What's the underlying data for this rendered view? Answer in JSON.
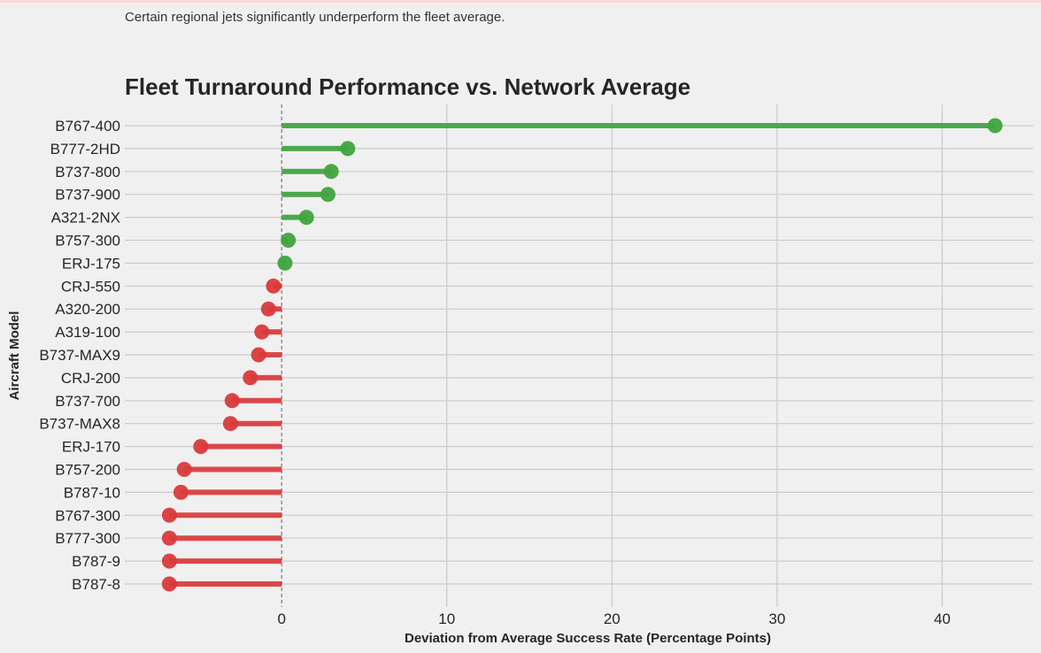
{
  "subtitle": "Certain regional jets significantly underperform the fleet average.",
  "colors": {
    "positive": "#3fa33f",
    "negative": "#d93a3a",
    "grid": "#cbcbcb",
    "background": "#f0f0f0",
    "reference_line": "#777777"
  },
  "chart_data": {
    "type": "lollipop",
    "orientation": "horizontal",
    "title": "Fleet Turnaround Performance vs. Network Average",
    "xlabel": "Deviation from Average Success Rate (Percentage Points)",
    "ylabel": "Aircraft Model",
    "xlim": [
      -9.5,
      45.5
    ],
    "xticks": [
      0,
      10,
      20,
      30,
      40
    ],
    "reference_line": 0,
    "grid": true,
    "categories": [
      "B767-400",
      "B777-2HD",
      "B737-800",
      "B737-900",
      "A321-2NX",
      "B757-300",
      "ERJ-175",
      "CRJ-550",
      "A320-200",
      "A319-100",
      "B737-MAX9",
      "CRJ-200",
      "B737-700",
      "B737-MAX8",
      "ERJ-170",
      "B757-200",
      "B787-10",
      "B767-300",
      "B777-300",
      "B787-9",
      "B787-8"
    ],
    "values": [
      43.2,
      4.0,
      3.0,
      2.8,
      1.5,
      0.4,
      0.2,
      -0.5,
      -0.8,
      -1.2,
      -1.4,
      -1.9,
      -3.0,
      -3.1,
      -4.9,
      -5.9,
      -6.1,
      -6.8,
      -6.8,
      -6.8,
      -6.8
    ]
  }
}
